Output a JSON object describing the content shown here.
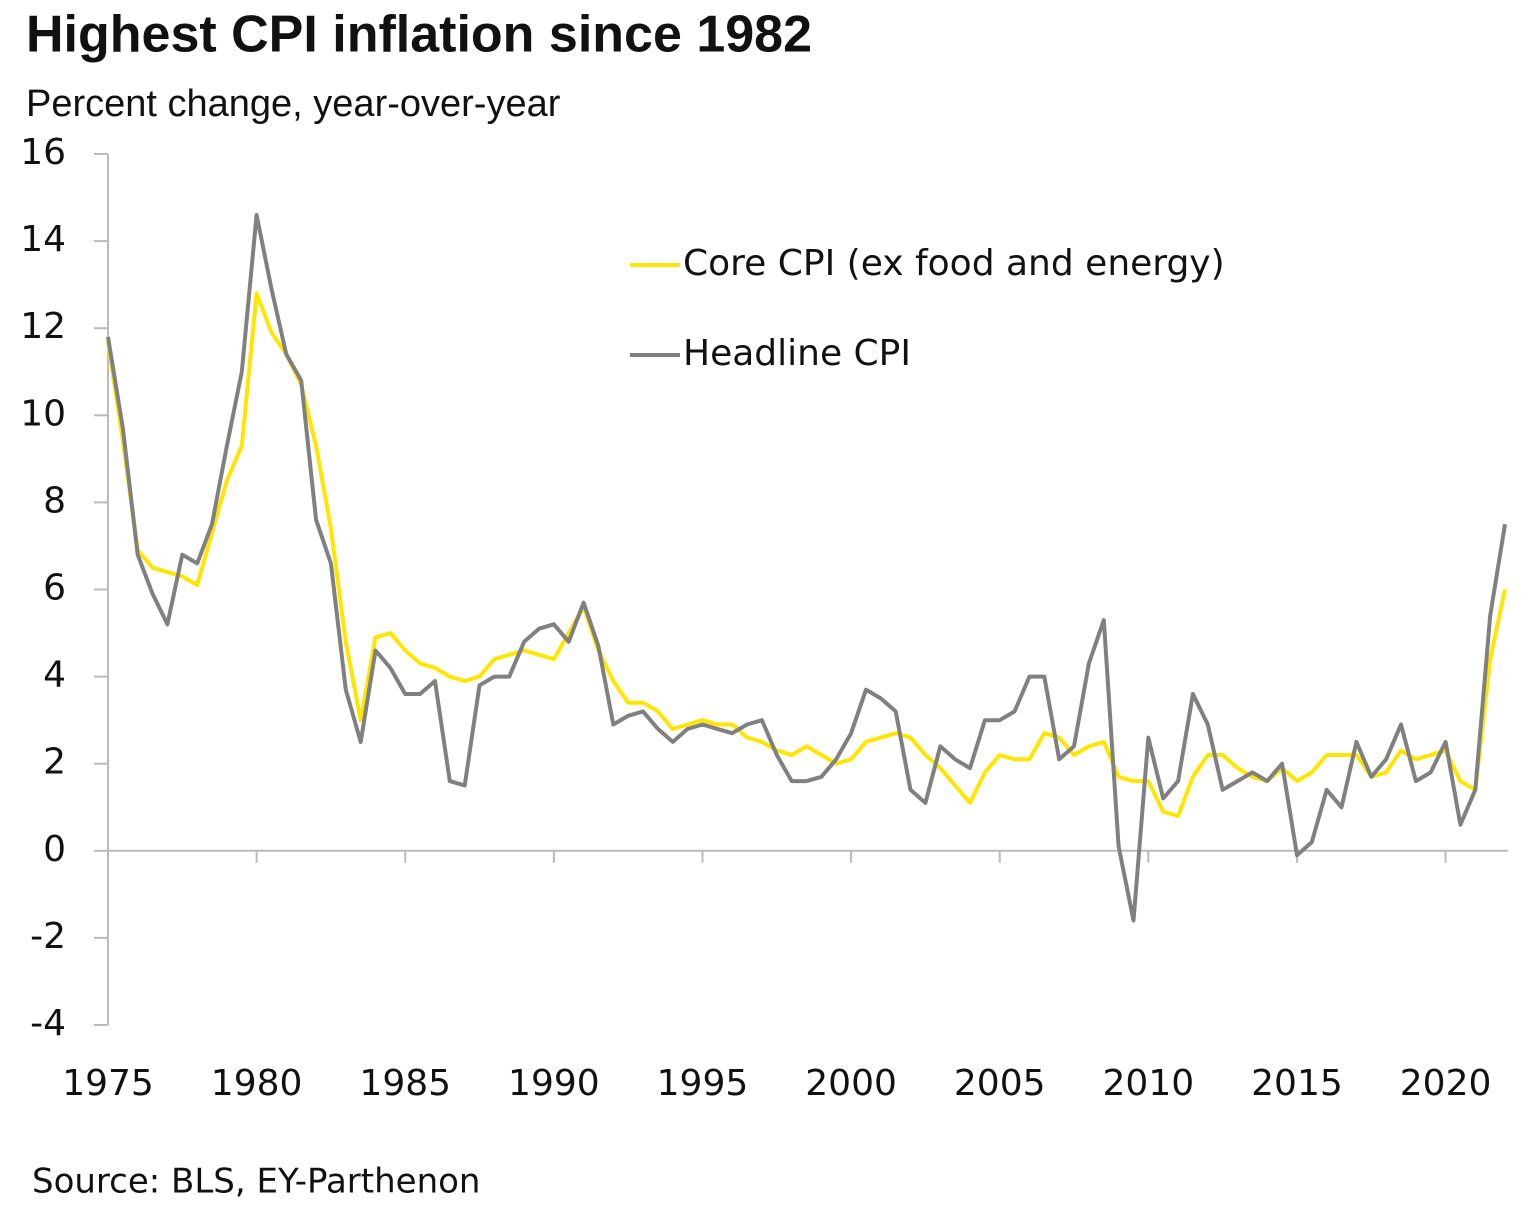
{
  "chart_data": {
    "type": "line",
    "title": "Highest CPI inflation since 1982",
    "subtitle": "Percent change, year-over-year",
    "source": "Source: BLS, EY-Parthenon",
    "x": [
      1975,
      1975.5,
      1976,
      1976.5,
      1977,
      1977.5,
      1978,
      1978.5,
      1979,
      1979.5,
      1980,
      1980.5,
      1981,
      1981.5,
      1982,
      1982.5,
      1983,
      1983.5,
      1984,
      1984.5,
      1985,
      1985.5,
      1986,
      1986.5,
      1987,
      1987.5,
      1988,
      1988.5,
      1989,
      1989.5,
      1990,
      1990.5,
      1991,
      1991.5,
      1992,
      1992.5,
      1993,
      1993.5,
      1994,
      1994.5,
      1995,
      1995.5,
      1996,
      1996.5,
      1997,
      1997.5,
      1998,
      1998.5,
      1999,
      1999.5,
      2000,
      2000.5,
      2001,
      2001.5,
      2002,
      2002.5,
      2003,
      2003.5,
      2004,
      2004.5,
      2005,
      2005.5,
      2006,
      2006.5,
      2007,
      2007.5,
      2008,
      2008.5,
      2009,
      2009.5,
      2010,
      2010.5,
      2011,
      2011.5,
      2012,
      2012.5,
      2013,
      2013.5,
      2014,
      2014.5,
      2015,
      2015.5,
      2016,
      2016.5,
      2017,
      2017.5,
      2018,
      2018.5,
      2019,
      2019.5,
      2020,
      2020.5,
      2021,
      2021.5,
      2022
    ],
    "series": [
      {
        "name": "Core CPI (ex food and energy)",
        "color": "#ffe600",
        "values": [
          11.7,
          9.4,
          6.9,
          6.5,
          6.4,
          6.3,
          6.1,
          7.3,
          8.5,
          9.3,
          12.8,
          11.9,
          11.4,
          10.7,
          9.3,
          7.4,
          4.8,
          3.0,
          4.9,
          5.0,
          4.6,
          4.3,
          4.2,
          4.0,
          3.9,
          4.0,
          4.4,
          4.5,
          4.6,
          4.5,
          4.4,
          5.0,
          5.6,
          4.6,
          3.9,
          3.4,
          3.4,
          3.2,
          2.8,
          2.9,
          3.0,
          2.9,
          2.9,
          2.6,
          2.5,
          2.3,
          2.2,
          2.4,
          2.2,
          2.0,
          2.1,
          2.5,
          2.6,
          2.7,
          2.6,
          2.2,
          1.9,
          1.5,
          1.1,
          1.8,
          2.2,
          2.1,
          2.1,
          2.7,
          2.6,
          2.2,
          2.4,
          2.5,
          1.7,
          1.6,
          1.6,
          0.9,
          0.8,
          1.7,
          2.2,
          2.2,
          1.9,
          1.7,
          1.6,
          1.9,
          1.6,
          1.8,
          2.2,
          2.2,
          2.2,
          1.7,
          1.8,
          2.3,
          2.1,
          2.2,
          2.3,
          1.6,
          1.4,
          4.4,
          6.0
        ]
      },
      {
        "name": "Headline CPI",
        "color": "#808080",
        "values": [
          11.8,
          9.7,
          6.8,
          5.9,
          5.2,
          6.8,
          6.6,
          7.5,
          9.3,
          11.0,
          14.6,
          12.9,
          11.4,
          10.8,
          7.6,
          6.6,
          3.7,
          2.5,
          4.6,
          4.2,
          3.6,
          3.6,
          3.9,
          1.6,
          1.5,
          3.8,
          4.0,
          4.0,
          4.8,
          5.1,
          5.2,
          4.8,
          5.7,
          4.7,
          2.9,
          3.1,
          3.2,
          2.8,
          2.5,
          2.8,
          2.9,
          2.8,
          2.7,
          2.9,
          3.0,
          2.2,
          1.6,
          1.6,
          1.7,
          2.1,
          2.7,
          3.7,
          3.5,
          3.2,
          1.4,
          1.1,
          2.4,
          2.1,
          1.9,
          3.0,
          3.0,
          3.2,
          4.0,
          4.0,
          2.1,
          2.4,
          4.3,
          5.3,
          0.1,
          -1.6,
          2.6,
          1.2,
          1.6,
          3.6,
          2.9,
          1.4,
          1.6,
          1.8,
          1.6,
          2.0,
          -0.1,
          0.2,
          1.4,
          1.0,
          2.5,
          1.7,
          2.1,
          2.9,
          1.6,
          1.8,
          2.5,
          0.6,
          1.4,
          5.4,
          7.5
        ]
      }
    ],
    "xlim": [
      1975,
      2022.1
    ],
    "xticks": [
      1975,
      1980,
      1985,
      1990,
      1995,
      2000,
      2005,
      2010,
      2015,
      2020
    ],
    "ylim": [
      -4,
      16
    ],
    "yticks": [
      -4,
      -2,
      0,
      2,
      4,
      6,
      8,
      10,
      12,
      14,
      16
    ],
    "grid": false,
    "legend": "upper right"
  }
}
